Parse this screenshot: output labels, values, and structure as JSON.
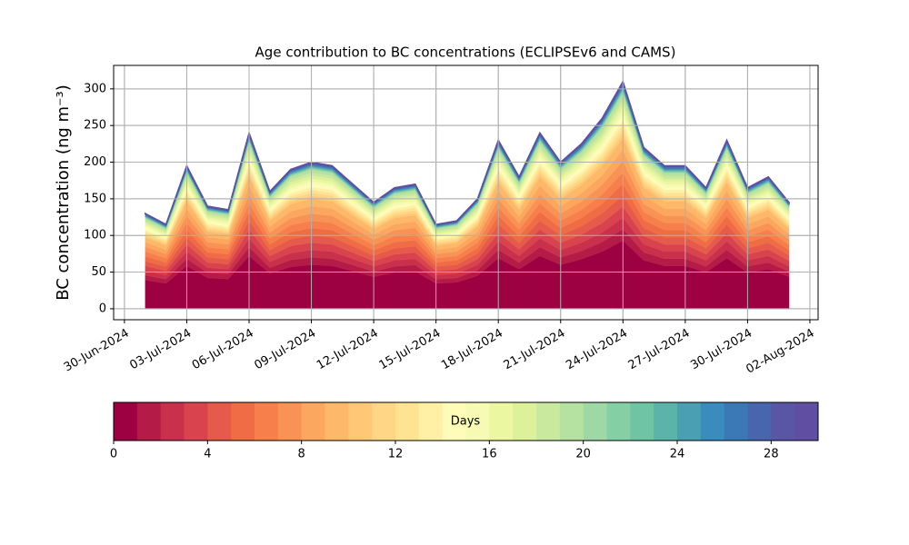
{
  "chart_data": {
    "type": "stacked_area",
    "title": "Age contribution to BC concentrations (ECLIPSEv6 and CAMS)",
    "y_label": "BC concentration (ng m⁻³)",
    "x": [
      "2024-07-01",
      "2024-07-02",
      "2024-07-03",
      "2024-07-04",
      "2024-07-05",
      "2024-07-06",
      "2024-07-07",
      "2024-07-08",
      "2024-07-09",
      "2024-07-10",
      "2024-07-11",
      "2024-07-12",
      "2024-07-13",
      "2024-07-14",
      "2024-07-15",
      "2024-07-16",
      "2024-07-17",
      "2024-07-18",
      "2024-07-19",
      "2024-07-20",
      "2024-07-21",
      "2024-07-22",
      "2024-07-23",
      "2024-07-24",
      "2024-07-25",
      "2024-07-26",
      "2024-07-27",
      "2024-07-28",
      "2024-07-29",
      "2024-07-30",
      "2024-07-31",
      "2024-08-01"
    ],
    "xlim": [
      "2024-06-29T11:30",
      "2024-08-02T09:30"
    ],
    "xticks": [
      {
        "value": "2024-06-30",
        "label": "30-Jun-2024"
      },
      {
        "value": "2024-07-03",
        "label": "03-Jul-2024"
      },
      {
        "value": "2024-07-06",
        "label": "06-Jul-2024"
      },
      {
        "value": "2024-07-09",
        "label": "09-Jul-2024"
      },
      {
        "value": "2024-07-12",
        "label": "12-Jul-2024"
      },
      {
        "value": "2024-07-15",
        "label": "15-Jul-2024"
      },
      {
        "value": "2024-07-18",
        "label": "18-Jul-2024"
      },
      {
        "value": "2024-07-21",
        "label": "21-Jul-2024"
      },
      {
        "value": "2024-07-24",
        "label": "24-Jul-2024"
      },
      {
        "value": "2024-07-27",
        "label": "27-Jul-2024"
      },
      {
        "value": "2024-07-30",
        "label": "30-Jul-2024"
      },
      {
        "value": "2024-08-02",
        "label": "02-Aug-2024"
      }
    ],
    "ylim": [
      -15,
      332
    ],
    "yticks": [
      0,
      50,
      100,
      150,
      200,
      250,
      300
    ],
    "grid": true,
    "series": [
      {
        "color": "#9e0142",
        "values": [
          39,
          34.5,
          58.5,
          42,
          40.5,
          72,
          48,
          57,
          60,
          58.5,
          51,
          43.5,
          49.5,
          51,
          34.5,
          36,
          45,
          69,
          54,
          72,
          60,
          67.5,
          78,
          93,
          66,
          58.5,
          58.5,
          49.5,
          69,
          49.5,
          54,
          43.5
        ]
      },
      {
        "color": "#b41b47",
        "values": [
          6.5,
          5.75,
          9.75,
          7,
          6.75,
          12,
          8,
          9.5,
          10,
          9.75,
          8.5,
          7.25,
          8.25,
          8.5,
          5.75,
          6,
          7.5,
          11.5,
          9,
          12,
          10,
          11.25,
          13,
          15.5,
          11,
          9.75,
          9.75,
          8.25,
          11.5,
          8.25,
          9,
          7.25
        ]
      },
      {
        "color": "#c9304c",
        "values": [
          6.5,
          5.75,
          9.75,
          7,
          6.75,
          12,
          8,
          9.5,
          10,
          9.75,
          8.5,
          7.25,
          8.25,
          8.5,
          5.75,
          6,
          7.5,
          11.5,
          9,
          12,
          10,
          11.25,
          13,
          15.5,
          11,
          9.75,
          9.75,
          8.25,
          11.5,
          8.25,
          9,
          7.25
        ]
      },
      {
        "color": "#d8434e",
        "values": [
          6.5,
          5.75,
          9.75,
          7,
          6.75,
          12,
          8,
          9.5,
          10,
          9.75,
          8.5,
          7.25,
          8.25,
          8.5,
          5.75,
          6,
          7.5,
          11.5,
          9,
          12,
          10,
          11.25,
          13,
          15.5,
          11,
          9.75,
          9.75,
          8.25,
          11.5,
          8.25,
          9,
          7.25
        ]
      },
      {
        "color": "#e55a4b",
        "values": [
          6.5,
          5.75,
          9.75,
          7,
          6.75,
          12,
          8,
          9.5,
          10,
          9.75,
          8.5,
          7.25,
          8.25,
          8.5,
          5.75,
          6,
          7.5,
          11.5,
          9,
          12,
          10,
          11.25,
          13,
          15.5,
          11,
          9.75,
          9.75,
          8.25,
          11.5,
          8.25,
          9,
          7.25
        ]
      },
      {
        "color": "#ef6c45",
        "values": [
          6.5,
          5.75,
          9.75,
          7,
          6.75,
          12,
          8,
          9.5,
          10,
          9.75,
          8.5,
          7.25,
          8.25,
          8.5,
          5.75,
          6,
          7.5,
          11.5,
          9,
          12,
          10,
          11.25,
          13,
          15.5,
          11,
          9.75,
          9.75,
          8.25,
          11.5,
          8.25,
          9,
          7.25
        ]
      },
      {
        "color": "#f67f4b",
        "values": [
          6.5,
          5.75,
          9.75,
          7,
          6.75,
          12,
          8,
          9.5,
          10,
          9.75,
          8.5,
          7.25,
          8.25,
          8.5,
          5.75,
          6,
          7.5,
          11.5,
          9,
          12,
          10,
          11.25,
          13,
          15.5,
          11,
          9.75,
          9.75,
          8.25,
          11.5,
          8.25,
          9,
          7.25
        ]
      },
      {
        "color": "#f99355",
        "values": [
          6.5,
          5.75,
          9.75,
          7,
          6.75,
          12,
          8,
          9.5,
          10,
          9.75,
          8.5,
          7.25,
          8.25,
          8.5,
          5.75,
          6,
          7.5,
          11.5,
          9,
          12,
          10,
          11.25,
          13,
          15.5,
          11,
          9.75,
          9.75,
          8.25,
          11.5,
          8.25,
          9,
          7.25
        ]
      },
      {
        "color": "#fca75f",
        "values": [
          6.5,
          5.75,
          9.75,
          7,
          6.75,
          12,
          8,
          9.5,
          10,
          9.75,
          8.5,
          7.25,
          8.25,
          8.5,
          5.75,
          6,
          7.5,
          11.5,
          9,
          12,
          10,
          11.25,
          13,
          15.5,
          11,
          9.75,
          9.75,
          8.25,
          11.5,
          8.25,
          9,
          7.25
        ]
      },
      {
        "color": "#fdb869",
        "values": [
          6.5,
          5.75,
          9.75,
          7,
          6.75,
          12,
          8,
          9.5,
          10,
          9.75,
          8.5,
          7.25,
          8.25,
          8.5,
          5.75,
          6,
          7.5,
          11.5,
          9,
          12,
          10,
          11.25,
          13,
          15.5,
          11,
          9.75,
          9.75,
          8.25,
          11.5,
          8.25,
          9,
          7.25
        ]
      },
      {
        "color": "#fec877",
        "values": [
          2.6,
          2.3,
          3.9,
          2.8,
          2.7,
          4.8,
          3.2,
          3.8,
          4,
          3.9,
          3.4,
          2.9,
          3.3,
          3.4,
          2.3,
          2.4,
          3,
          4.6,
          3.6,
          4.8,
          4,
          4.5,
          5.2,
          6.2,
          4.4,
          3.9,
          3.9,
          3.3,
          4.6,
          3.3,
          3.6,
          2.9
        ]
      },
      {
        "color": "#fed685",
        "values": [
          2.6,
          2.3,
          3.9,
          2.8,
          2.7,
          4.8,
          3.2,
          3.8,
          4,
          3.9,
          3.4,
          2.9,
          3.3,
          3.4,
          2.3,
          2.4,
          3,
          4.6,
          3.6,
          4.8,
          4,
          4.5,
          5.2,
          6.2,
          4.4,
          3.9,
          3.9,
          3.3,
          4.6,
          3.3,
          3.6,
          2.9
        ]
      },
      {
        "color": "#fee492",
        "values": [
          2.6,
          2.3,
          3.9,
          2.8,
          2.7,
          4.8,
          3.2,
          3.8,
          4,
          3.9,
          3.4,
          2.9,
          3.3,
          3.4,
          2.3,
          2.4,
          3,
          4.6,
          3.6,
          4.8,
          4,
          4.5,
          5.2,
          6.2,
          4.4,
          3.9,
          3.9,
          3.3,
          4.6,
          3.3,
          3.6,
          2.9
        ]
      },
      {
        "color": "#fff0a6",
        "values": [
          2.6,
          2.3,
          3.9,
          2.8,
          2.7,
          4.8,
          3.2,
          3.8,
          4,
          3.9,
          3.4,
          2.9,
          3.3,
          3.4,
          2.3,
          2.4,
          3,
          4.6,
          3.6,
          4.8,
          4,
          4.5,
          5.2,
          6.2,
          4.4,
          3.9,
          3.9,
          3.3,
          4.6,
          3.3,
          3.6,
          2.9
        ]
      },
      {
        "color": "#fffcb9",
        "values": [
          2.6,
          2.3,
          3.9,
          2.8,
          2.7,
          4.8,
          3.2,
          3.8,
          4,
          3.9,
          3.4,
          2.9,
          3.3,
          3.4,
          2.3,
          2.4,
          3,
          4.6,
          3.6,
          4.8,
          4,
          4.5,
          5.2,
          6.2,
          4.4,
          3.9,
          3.9,
          3.3,
          4.6,
          3.3,
          3.6,
          2.9
        ]
      },
      {
        "color": "#f6fbb3",
        "values": [
          2.6,
          2.3,
          3.9,
          2.8,
          2.7,
          4.8,
          3.2,
          3.8,
          4,
          3.9,
          3.4,
          2.9,
          3.3,
          3.4,
          2.3,
          2.4,
          3,
          4.6,
          3.6,
          4.8,
          4,
          4.5,
          5.2,
          6.2,
          4.4,
          3.9,
          3.9,
          3.3,
          4.6,
          3.3,
          3.6,
          2.9
        ]
      },
      {
        "color": "#ecf7a2",
        "values": [
          2.6,
          2.3,
          3.9,
          2.8,
          2.7,
          4.8,
          3.2,
          3.8,
          4,
          3.9,
          3.4,
          2.9,
          3.3,
          3.4,
          2.3,
          2.4,
          3,
          4.6,
          3.6,
          4.8,
          4,
          4.5,
          5.2,
          6.2,
          4.4,
          3.9,
          3.9,
          3.3,
          4.6,
          3.3,
          3.6,
          2.9
        ]
      },
      {
        "color": "#ddf19a",
        "values": [
          2.6,
          2.3,
          3.9,
          2.8,
          2.7,
          4.8,
          3.2,
          3.8,
          4,
          3.9,
          3.4,
          2.9,
          3.3,
          3.4,
          2.3,
          2.4,
          3,
          4.6,
          3.6,
          4.8,
          4,
          4.5,
          5.2,
          6.2,
          4.4,
          3.9,
          3.9,
          3.3,
          4.6,
          3.3,
          3.6,
          2.9
        ]
      },
      {
        "color": "#c9e99e",
        "values": [
          2.6,
          2.3,
          3.9,
          2.8,
          2.7,
          4.8,
          3.2,
          3.8,
          4,
          3.9,
          3.4,
          2.9,
          3.3,
          3.4,
          2.3,
          2.4,
          3,
          4.6,
          3.6,
          4.8,
          4,
          4.5,
          5.2,
          6.2,
          4.4,
          3.9,
          3.9,
          3.3,
          4.6,
          3.3,
          3.6,
          2.9
        ]
      },
      {
        "color": "#b5e1a1",
        "values": [
          2.6,
          2.3,
          3.9,
          2.8,
          2.7,
          4.8,
          3.2,
          3.8,
          4,
          3.9,
          3.4,
          2.9,
          3.3,
          3.4,
          2.3,
          2.4,
          3,
          4.6,
          3.6,
          4.8,
          4,
          4.5,
          5.2,
          6.2,
          4.4,
          3.9,
          3.9,
          3.3,
          4.6,
          3.3,
          3.6,
          2.9
        ]
      },
      {
        "color": "#9ed8a4",
        "values": [
          0.65,
          0.58,
          0.98,
          0.7,
          0.68,
          1.2,
          0.8,
          0.95,
          1,
          0.98,
          0.85,
          0.73,
          0.83,
          0.85,
          0.58,
          0.6,
          0.75,
          1.15,
          0.9,
          1.2,
          1,
          1.13,
          1.3,
          1.55,
          1.1,
          0.98,
          0.98,
          0.83,
          1.15,
          0.83,
          0.9,
          0.73
        ]
      },
      {
        "color": "#85cfa5",
        "values": [
          0.65,
          0.58,
          0.98,
          0.7,
          0.68,
          1.2,
          0.8,
          0.95,
          1,
          0.98,
          0.85,
          0.73,
          0.83,
          0.85,
          0.58,
          0.6,
          0.75,
          1.15,
          0.9,
          1.2,
          1,
          1.13,
          1.3,
          1.55,
          1.1,
          0.98,
          0.98,
          0.83,
          1.15,
          0.83,
          0.9,
          0.73
        ]
      },
      {
        "color": "#6fc4a5",
        "values": [
          0.65,
          0.58,
          0.98,
          0.7,
          0.68,
          1.2,
          0.8,
          0.95,
          1,
          0.98,
          0.85,
          0.73,
          0.83,
          0.85,
          0.58,
          0.6,
          0.75,
          1.15,
          0.9,
          1.2,
          1,
          1.13,
          1.3,
          1.55,
          1.1,
          0.98,
          0.98,
          0.83,
          1.15,
          0.83,
          0.9,
          0.73
        ]
      },
      {
        "color": "#5cb3a9",
        "values": [
          0.65,
          0.58,
          0.98,
          0.7,
          0.68,
          1.2,
          0.8,
          0.95,
          1,
          0.98,
          0.85,
          0.73,
          0.83,
          0.85,
          0.58,
          0.6,
          0.75,
          1.15,
          0.9,
          1.2,
          1,
          1.13,
          1.3,
          1.55,
          1.1,
          0.98,
          0.98,
          0.83,
          1.15,
          0.83,
          0.9,
          0.73
        ]
      },
      {
        "color": "#4aa0b2",
        "values": [
          0.65,
          0.58,
          0.98,
          0.7,
          0.68,
          1.2,
          0.8,
          0.95,
          1,
          0.98,
          0.85,
          0.73,
          0.83,
          0.85,
          0.58,
          0.6,
          0.75,
          1.15,
          0.9,
          1.2,
          1,
          1.13,
          1.3,
          1.55,
          1.1,
          0.98,
          0.98,
          0.83,
          1.15,
          0.83,
          0.9,
          0.73
        ]
      },
      {
        "color": "#3a8cbc",
        "values": [
          0.65,
          0.58,
          0.98,
          0.7,
          0.68,
          1.2,
          0.8,
          0.95,
          1,
          0.98,
          0.85,
          0.73,
          0.83,
          0.85,
          0.58,
          0.6,
          0.75,
          1.15,
          0.9,
          1.2,
          1,
          1.13,
          1.3,
          1.55,
          1.1,
          0.98,
          0.98,
          0.83,
          1.15,
          0.83,
          0.9,
          0.73
        ]
      },
      {
        "color": "#3b79b6",
        "values": [
          0.65,
          0.58,
          0.98,
          0.7,
          0.68,
          1.2,
          0.8,
          0.95,
          1,
          0.98,
          0.85,
          0.73,
          0.83,
          0.85,
          0.58,
          0.6,
          0.75,
          1.15,
          0.9,
          1.2,
          1,
          1.13,
          1.3,
          1.55,
          1.1,
          0.98,
          0.98,
          0.83,
          1.15,
          0.83,
          0.9,
          0.73
        ]
      },
      {
        "color": "#4866ad",
        "values": [
          0.65,
          0.58,
          0.98,
          0.7,
          0.68,
          1.2,
          0.8,
          0.95,
          1,
          0.98,
          0.85,
          0.73,
          0.83,
          0.85,
          0.58,
          0.6,
          0.75,
          1.15,
          0.9,
          1.2,
          1,
          1.13,
          1.3,
          1.55,
          1.1,
          0.98,
          0.98,
          0.83,
          1.15,
          0.83,
          0.9,
          0.73
        ]
      },
      {
        "color": "#5956a5",
        "values": [
          0.65,
          0.58,
          0.98,
          0.7,
          0.68,
          1.2,
          0.8,
          0.95,
          1,
          0.98,
          0.85,
          0.73,
          0.83,
          0.85,
          0.58,
          0.6,
          0.75,
          1.15,
          0.9,
          1.2,
          1,
          1.13,
          1.3,
          1.55,
          1.1,
          0.98,
          0.98,
          0.83,
          1.15,
          0.83,
          0.9,
          0.73
        ]
      },
      {
        "color": "#5e4fa2",
        "values": [
          0.65,
          0.58,
          0.98,
          0.7,
          0.68,
          1.2,
          0.8,
          0.95,
          1,
          0.98,
          0.85,
          0.73,
          0.83,
          0.85,
          0.58,
          0.6,
          0.75,
          1.15,
          0.9,
          1.2,
          1,
          1.13,
          1.3,
          1.55,
          1.1,
          0.98,
          0.98,
          0.83,
          1.15,
          0.83,
          0.9,
          0.73
        ]
      }
    ],
    "colorbar": {
      "label": "Days",
      "lim": [
        0,
        30
      ],
      "ticks": [
        0,
        4,
        8,
        12,
        16,
        20,
        24,
        28
      ]
    }
  }
}
